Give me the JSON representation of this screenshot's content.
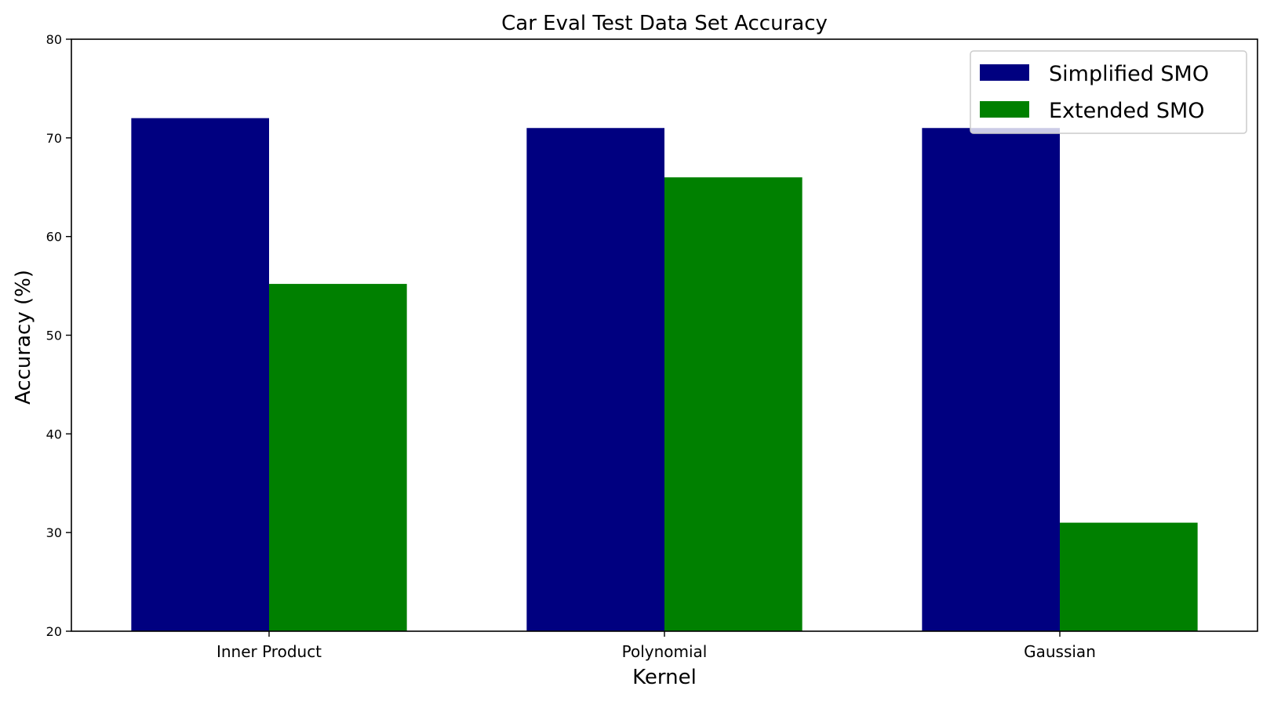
{
  "chart_data": {
    "type": "bar",
    "title": "Car Eval Test Data Set Accuracy",
    "xlabel": "Kernel",
    "ylabel": "Accuracy (%)",
    "categories": [
      "Inner Product",
      "Polynomial",
      "Gaussian"
    ],
    "series": [
      {
        "name": "Simplified SMO",
        "color": "#000080",
        "values": [
          72,
          71,
          71
        ]
      },
      {
        "name": "Extended SMO",
        "color": "#008000",
        "values": [
          55.2,
          66,
          31
        ]
      }
    ],
    "ylim": [
      20,
      80
    ],
    "yticks": [
      "20",
      "30",
      "40",
      "50",
      "60",
      "70",
      "80"
    ],
    "grid": false,
    "legend_position": "top-right"
  }
}
